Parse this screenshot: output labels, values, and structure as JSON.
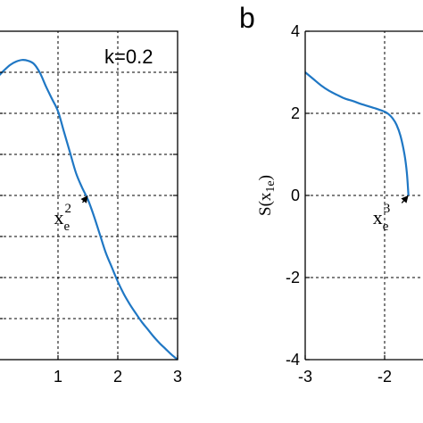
{
  "chart_data": [
    {
      "type": "line",
      "panel": "",
      "annotation": "k=0.2",
      "xlim": [
        0,
        3
      ],
      "ylim": [
        -4,
        4
      ],
      "x_ticks": [
        "1",
        "2",
        "3"
      ],
      "grid": true,
      "series": [
        {
          "color": "#1f77c4",
          "x": [
            0.0,
            0.1,
            0.2,
            0.3,
            0.4,
            0.5,
            0.6,
            0.7,
            0.8,
            0.9,
            1.0,
            1.1,
            1.2,
            1.3,
            1.4,
            1.5,
            1.6,
            1.7,
            1.8,
            1.9,
            2.0,
            2.1,
            2.2,
            2.3,
            2.4,
            2.5,
            2.6,
            2.7,
            2.8,
            2.9,
            3.0
          ],
          "y": [
            2.9,
            3.05,
            3.18,
            3.26,
            3.3,
            3.28,
            3.2,
            2.98,
            2.65,
            2.35,
            2.05,
            1.55,
            1.05,
            0.55,
            0.2,
            -0.1,
            -0.5,
            -0.95,
            -1.4,
            -1.75,
            -2.1,
            -2.4,
            -2.65,
            -2.87,
            -3.08,
            -3.26,
            -3.44,
            -3.6,
            -3.74,
            -3.88,
            -4.0
          ]
        }
      ],
      "marker": {
        "label": "x",
        "sub": "e",
        "sup": "2",
        "x": 1.5,
        "y": 0.0
      }
    },
    {
      "type": "line",
      "panel": "b",
      "xlim": [
        -3,
        -1
      ],
      "ylim": [
        -4,
        4
      ],
      "x_ticks": [
        "-3",
        "-2"
      ],
      "y_ticks": [
        "4",
        "2",
        "0",
        "-2",
        "-4"
      ],
      "ylabel": {
        "main": "S(x",
        "sub": "1e",
        "close": ")"
      },
      "grid": true,
      "series": [
        {
          "color": "#1f77c4",
          "x": [
            -3.0,
            -2.9,
            -2.8,
            -2.7,
            -2.6,
            -2.5,
            -2.4,
            -2.3,
            -2.2,
            -2.1,
            -2.0,
            -1.95,
            -1.9,
            -1.85,
            -1.8,
            -1.75,
            -1.72,
            -1.7
          ],
          "y": [
            3.0,
            2.84,
            2.68,
            2.55,
            2.45,
            2.36,
            2.3,
            2.23,
            2.17,
            2.11,
            2.04,
            1.98,
            1.88,
            1.72,
            1.45,
            1.0,
            0.55,
            0.0
          ]
        }
      ],
      "marker": {
        "label": "x",
        "sub": "e",
        "sup": "3",
        "x": -1.7,
        "y": 0.0
      }
    }
  ]
}
